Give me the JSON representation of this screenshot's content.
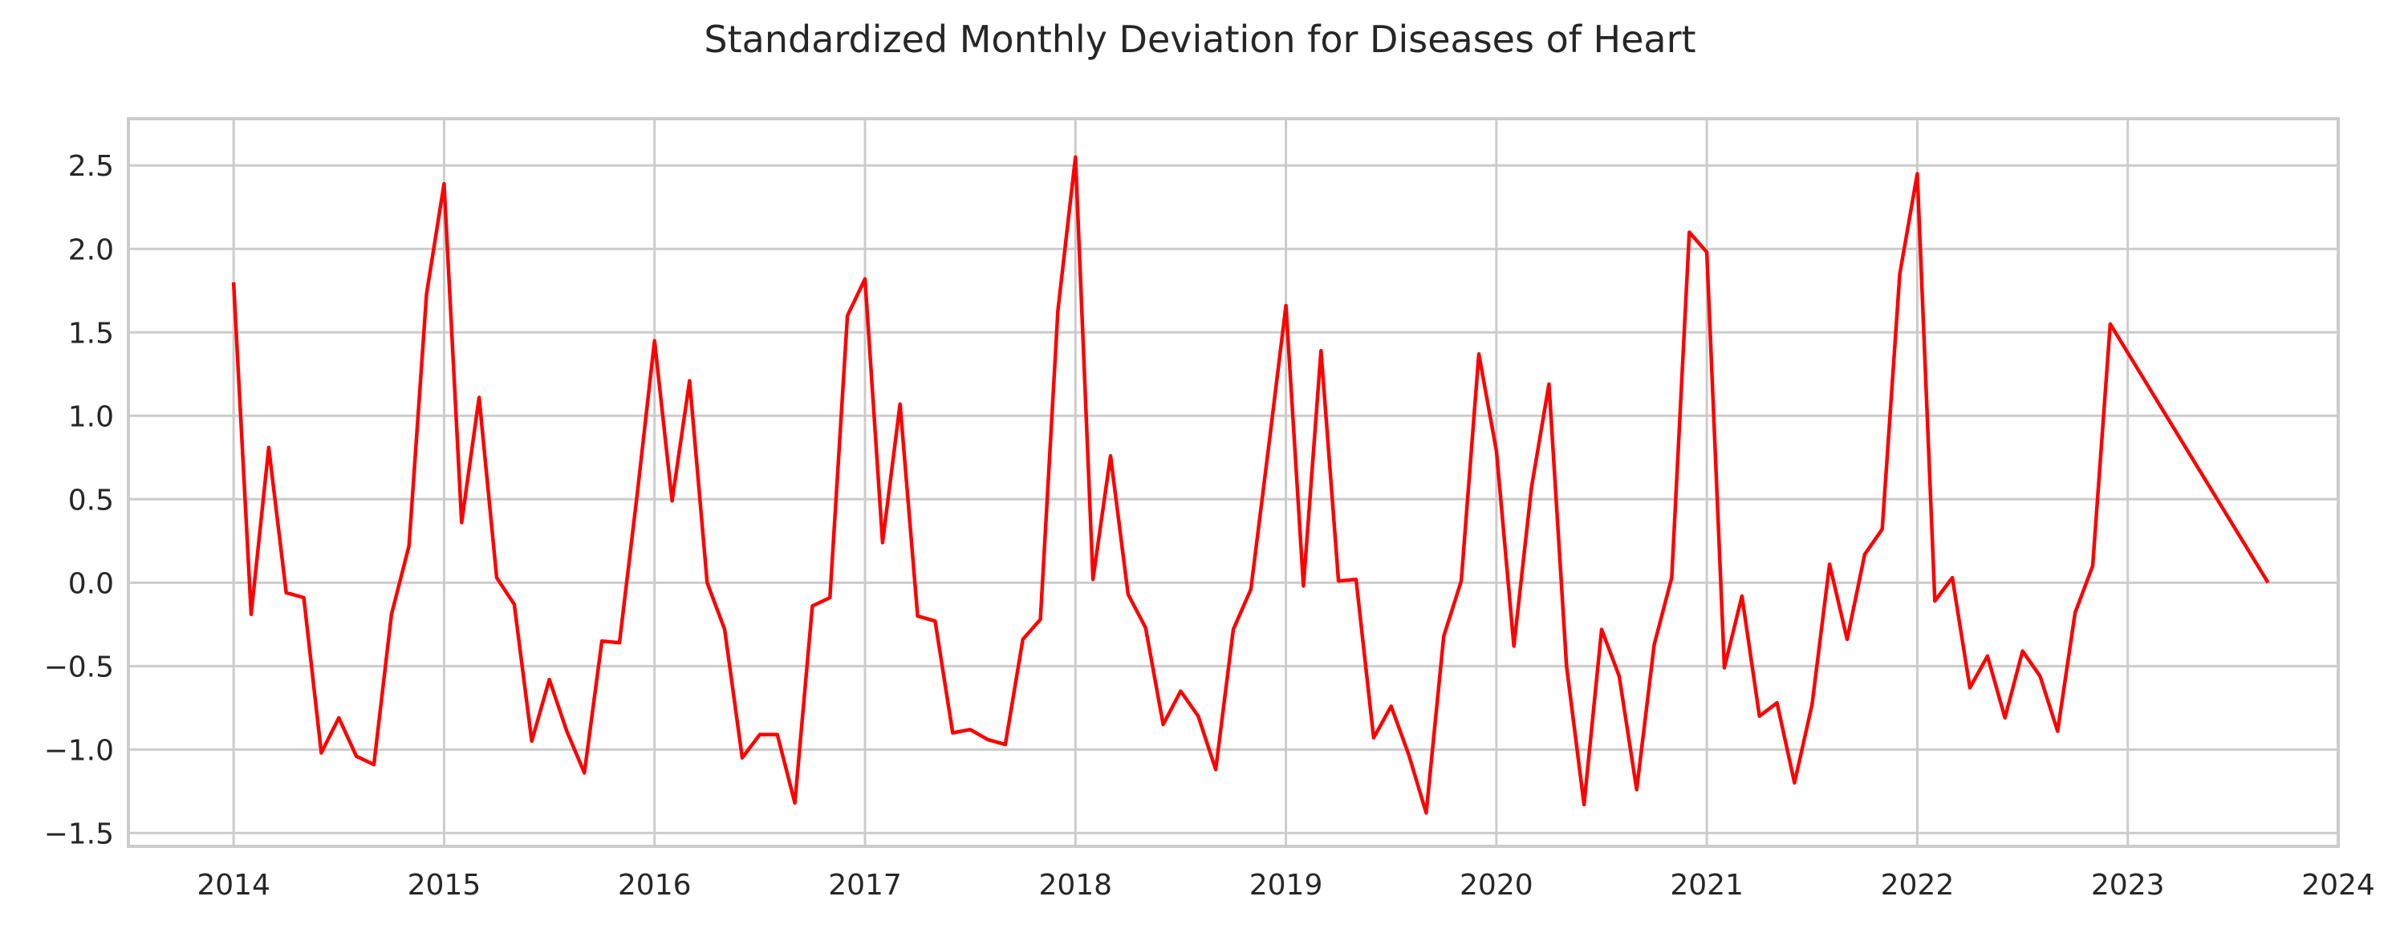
{
  "chart_data": {
    "type": "line",
    "title": "Standardized Monthly Deviation for Diseases of Heart",
    "xlabel": "",
    "ylabel": "",
    "grid": true,
    "legend": "none",
    "series_color": "#ff0000",
    "xlim": [
      "2013-07",
      "2024-01"
    ],
    "ylim": [
      -1.58,
      2.78
    ],
    "x_ticks": [
      "2014",
      "2015",
      "2016",
      "2017",
      "2018",
      "2019",
      "2020",
      "2021",
      "2022",
      "2023",
      "2024"
    ],
    "y_ticks": [
      "2.5",
      "2.0",
      "1.5",
      "1.0",
      "0.5",
      "0.0",
      "−0.5",
      "−1.0",
      "−1.5"
    ],
    "series": [
      {
        "x": [
          "2014-01",
          "2014-02",
          "2014-03",
          "2014-04",
          "2014-05",
          "2014-06",
          "2014-07",
          "2014-08",
          "2014-09",
          "2014-10",
          "2014-11",
          "2014-12",
          "2015-01",
          "2015-02",
          "2015-03",
          "2015-04",
          "2015-05",
          "2015-06",
          "2015-07",
          "2015-08",
          "2015-09",
          "2015-10",
          "2015-11",
          "2015-12",
          "2016-01",
          "2016-02",
          "2016-03",
          "2016-04",
          "2016-05",
          "2016-06",
          "2016-07",
          "2016-08",
          "2016-09",
          "2016-10",
          "2016-11",
          "2016-12",
          "2017-01",
          "2017-02",
          "2017-03",
          "2017-04",
          "2017-05",
          "2017-06",
          "2017-07",
          "2017-08",
          "2017-09",
          "2017-10",
          "2017-11",
          "2017-12",
          "2018-01",
          "2018-02",
          "2018-03",
          "2018-04",
          "2018-05",
          "2018-06",
          "2018-07",
          "2018-08",
          "2018-09",
          "2018-10",
          "2018-11",
          "2018-12",
          "2019-01",
          "2019-02",
          "2019-03",
          "2019-04",
          "2019-05",
          "2019-06",
          "2019-07",
          "2019-08",
          "2019-09",
          "2019-10",
          "2019-11",
          "2019-12",
          "2020-01",
          "2020-02",
          "2020-03",
          "2020-04",
          "2020-05",
          "2020-06",
          "2020-07",
          "2020-08",
          "2020-09",
          "2020-10",
          "2020-11",
          "2020-12",
          "2021-01",
          "2021-02",
          "2021-03",
          "2021-04",
          "2021-05",
          "2021-06",
          "2021-07",
          "2021-08",
          "2021-09",
          "2021-10",
          "2021-11",
          "2021-12",
          "2022-01",
          "2022-02",
          "2022-03",
          "2022-04",
          "2022-05",
          "2022-06",
          "2022-07",
          "2022-08",
          "2022-09",
          "2022-10",
          "2022-11",
          "2022-12",
          "2023-09"
        ],
        "values": [
          1.8,
          -0.19,
          0.81,
          -0.06,
          -0.09,
          -1.02,
          -0.81,
          -1.04,
          -1.09,
          -0.19,
          0.22,
          1.73,
          2.39,
          0.36,
          1.11,
          0.03,
          -0.13,
          -0.95,
          -0.58,
          -0.89,
          -1.14,
          -0.35,
          -0.36,
          0.52,
          1.45,
          0.49,
          1.21,
          0.0,
          -0.28,
          -1.05,
          -0.91,
          -0.91,
          -1.32,
          -0.14,
          -0.09,
          1.6,
          1.82,
          0.24,
          1.07,
          -0.2,
          -0.23,
          -0.9,
          -0.88,
          -0.94,
          -0.97,
          -0.34,
          -0.22,
          1.63,
          2.55,
          0.02,
          0.76,
          -0.07,
          -0.27,
          -0.85,
          -0.65,
          -0.8,
          -1.12,
          -0.28,
          -0.04,
          0.8,
          1.66,
          -0.02,
          1.39,
          0.01,
          0.02,
          -0.93,
          -0.74,
          -1.03,
          -1.38,
          -0.32,
          0.01,
          1.37,
          0.79,
          -0.38,
          0.57,
          1.19,
          -0.5,
          -1.33,
          -0.28,
          -0.56,
          -1.24,
          -0.37,
          0.03,
          2.1,
          1.98,
          -0.51,
          -0.08,
          -0.8,
          -0.72,
          -1.2,
          -0.73,
          0.11,
          -0.34,
          0.17,
          0.32,
          1.85,
          2.45,
          -0.11,
          0.03,
          -0.63,
          -0.44,
          -0.81,
          -0.41,
          -0.56,
          -0.89,
          -0.18,
          0.1,
          1.55,
          0.0
        ]
      }
    ]
  }
}
